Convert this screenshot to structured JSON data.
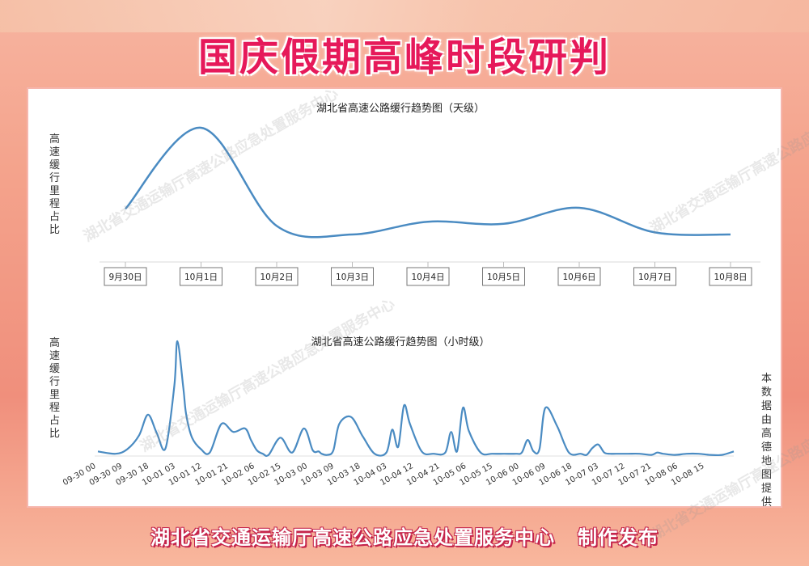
{
  "page_title": "国庆假期高峰时段研判",
  "footer": "湖北省交通运输厅高速公路应急处置服务中心   制作发布",
  "watermark": "湖北省交通运输厅高速公路应急处置服务中心",
  "colors": {
    "line": "#4a8bc2",
    "title": "#e6195a",
    "panel_border": "#f6b6ad"
  },
  "chart_data": [
    {
      "type": "line",
      "title": "湖北省高速公路缓行趋势图（天级）",
      "ylabel": "高速缓行里程占比",
      "categories": [
        "9月30日",
        "10月1日",
        "10月2日",
        "10月3日",
        "10月4日",
        "10月5日",
        "10月6日",
        "10月7日",
        "10月8日"
      ],
      "values": [
        24,
        100,
        8,
        0,
        12,
        10,
        25,
        2,
        0
      ],
      "ylim": [
        0,
        100
      ],
      "grid": false
    },
    {
      "type": "line",
      "title": "湖北省高速公路缓行趋势图（小时级）",
      "ylabel": "高速缓行里程占比",
      "note": "本数据由高德地图提供",
      "tick_labels": [
        "09-30 00",
        "09-30 09",
        "09-30 18",
        "10-01 03",
        "10-01 12",
        "10-01 21",
        "10-02 06",
        "10-02 15",
        "10-03 00",
        "10-03 09",
        "10-03 18",
        "10-04 03",
        "10-04 12",
        "10-04 21",
        "10-05 06",
        "10-05 15",
        "10-06 00",
        "10-06 09",
        "10-06 18",
        "10-07 03",
        "10-07 12",
        "10-07 21",
        "10-08 06",
        "10-08 15"
      ],
      "x_hours": [
        0,
        6,
        10,
        14,
        17,
        20,
        23,
        26,
        27,
        29,
        30,
        32,
        35,
        38,
        42,
        46,
        50,
        52,
        54,
        56,
        58,
        62,
        66,
        70,
        73,
        75,
        76,
        78,
        80,
        82,
        86,
        90,
        94,
        98,
        100,
        102,
        104,
        106,
        110,
        114,
        118,
        120,
        122,
        124,
        126,
        130,
        134,
        138,
        142,
        144,
        146,
        148,
        150,
        152,
        156,
        160,
        164,
        166,
        168,
        170,
        172,
        174,
        176,
        180,
        184,
        188,
        190,
        192,
        196,
        200,
        204,
        208,
        212,
        216
      ],
      "values": [
        4,
        2,
        6,
        18,
        36,
        20,
        7,
        62,
        100,
        60,
        36,
        16,
        6,
        3,
        28,
        21,
        24,
        14,
        5,
        2,
        1,
        16,
        3,
        24,
        5,
        4,
        2,
        1,
        5,
        28,
        34,
        17,
        2,
        3,
        23,
        8,
        44,
        28,
        4,
        2,
        3,
        21,
        4,
        42,
        22,
        3,
        2,
        2,
        2,
        3,
        14,
        4,
        6,
        42,
        26,
        3,
        2,
        1,
        7,
        10,
        3,
        2,
        2,
        2,
        2,
        1,
        3,
        2,
        1,
        2,
        2,
        1,
        1,
        4
      ],
      "ylim": [
        0,
        100
      ],
      "grid": false
    }
  ]
}
